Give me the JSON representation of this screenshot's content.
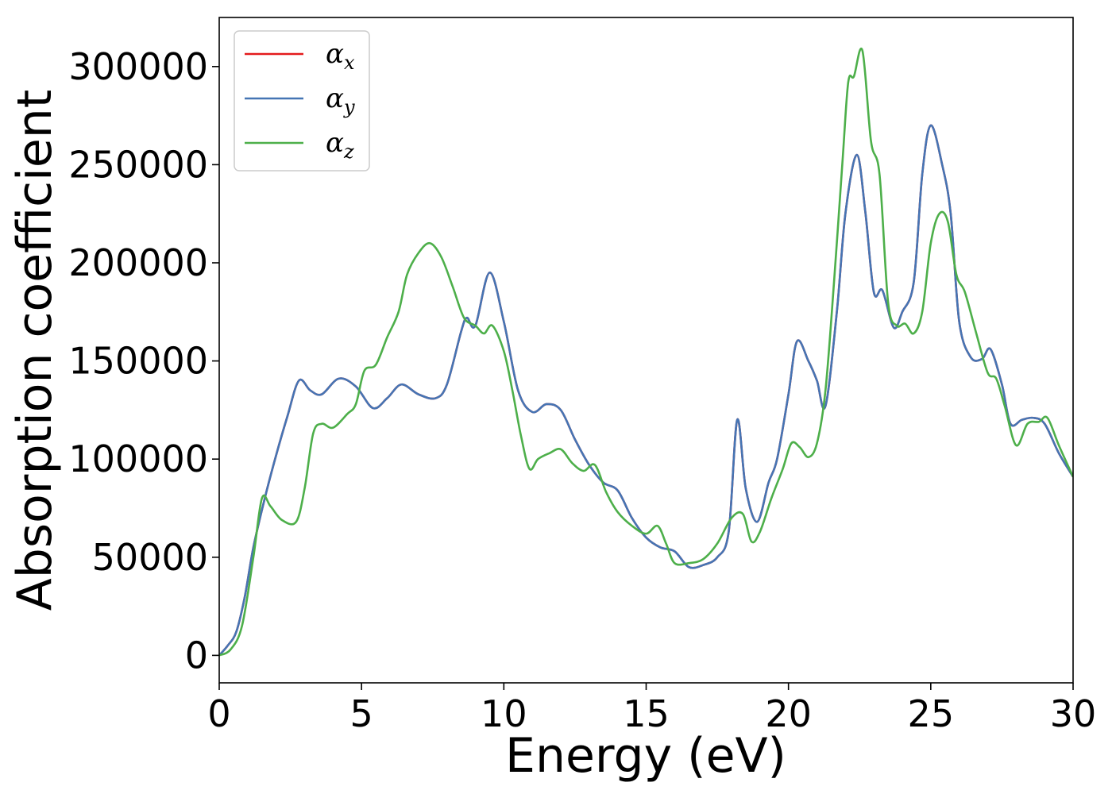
{
  "chart_data": {
    "type": "line",
    "xlabel": "Energy (eV)",
    "ylabel": "Absorption coefficient",
    "xlim": [
      0,
      30
    ],
    "ylim": [
      -14000,
      325000
    ],
    "x_ticks": [
      0,
      5,
      10,
      15,
      20,
      25,
      30
    ],
    "y_ticks": [
      0,
      50000,
      100000,
      150000,
      200000,
      250000,
      300000
    ],
    "x_tick_labels": [
      "0",
      "5",
      "10",
      "15",
      "20",
      "25",
      "30"
    ],
    "y_tick_labels": [
      "0",
      "50000",
      "100000",
      "150000",
      "200000",
      "250000",
      "300000"
    ],
    "grid": false,
    "legend_position": "top-left",
    "series": [
      {
        "name": "α_x",
        "label_main": "α",
        "label_sub": "x",
        "color": "#e41a1c",
        "x": [
          0,
          0.3,
          0.6,
          0.9,
          1.2,
          1.6,
          2.0,
          2.4,
          2.8,
          3.2,
          3.6,
          4.2,
          4.8,
          5.4,
          5.9,
          6.4,
          7.0,
          7.6,
          8.0,
          8.5,
          8.7,
          9.0,
          9.5,
          10.0,
          10.5,
          11.0,
          11.5,
          12.0,
          12.5,
          13.0,
          13.5,
          14.0,
          14.5,
          15.0,
          15.5,
          16.0,
          16.5,
          17.0,
          17.5,
          17.9,
          18.2,
          18.5,
          18.9,
          19.3,
          19.6,
          20.0,
          20.3,
          20.7,
          21.0,
          21.3,
          21.7,
          22.0,
          22.4,
          22.7,
          23.0,
          23.3,
          23.7,
          24.0,
          24.4,
          24.7,
          25.0,
          25.4,
          25.7,
          26.0,
          26.4,
          26.8,
          27.1,
          27.5,
          27.8,
          28.2,
          28.6,
          29.0,
          29.5,
          30.0
        ],
        "values": [
          0,
          5000,
          12000,
          30000,
          55000,
          80000,
          102000,
          122000,
          140000,
          135000,
          133000,
          141000,
          137000,
          126000,
          131000,
          138000,
          133000,
          131000,
          138000,
          165000,
          172000,
          168000,
          195000,
          170000,
          135000,
          124000,
          128000,
          125000,
          110000,
          97000,
          88000,
          84000,
          70000,
          60000,
          55000,
          53000,
          45000,
          46000,
          50000,
          63000,
          120000,
          85000,
          68000,
          88000,
          100000,
          133000,
          160000,
          150000,
          140000,
          127000,
          175000,
          225000,
          255000,
          226000,
          185000,
          186000,
          167000,
          175000,
          190000,
          245000,
          270000,
          250000,
          225000,
          170000,
          152000,
          151000,
          156000,
          138000,
          118000,
          120000,
          121000,
          118000,
          103000,
          91000
        ]
      },
      {
        "name": "α_y",
        "label_main": "α",
        "label_sub": "y",
        "color": "#4575b4",
        "x": [
          0,
          0.3,
          0.6,
          0.9,
          1.2,
          1.6,
          2.0,
          2.4,
          2.8,
          3.2,
          3.6,
          4.2,
          4.8,
          5.4,
          5.9,
          6.4,
          7.0,
          7.6,
          8.0,
          8.5,
          8.7,
          9.0,
          9.5,
          10.0,
          10.5,
          11.0,
          11.5,
          12.0,
          12.5,
          13.0,
          13.5,
          14.0,
          14.5,
          15.0,
          15.5,
          16.0,
          16.5,
          17.0,
          17.5,
          17.9,
          18.2,
          18.5,
          18.9,
          19.3,
          19.6,
          20.0,
          20.3,
          20.7,
          21.0,
          21.3,
          21.7,
          22.0,
          22.4,
          22.7,
          23.0,
          23.3,
          23.7,
          24.0,
          24.4,
          24.7,
          25.0,
          25.4,
          25.7,
          26.0,
          26.4,
          26.8,
          27.1,
          27.5,
          27.8,
          28.2,
          28.6,
          29.0,
          29.5,
          30.0
        ],
        "values": [
          0,
          5000,
          12000,
          30000,
          55000,
          80000,
          102000,
          122000,
          140000,
          135000,
          133000,
          141000,
          137000,
          126000,
          131000,
          138000,
          133000,
          131000,
          138000,
          165000,
          172000,
          168000,
          195000,
          170000,
          135000,
          124000,
          128000,
          125000,
          110000,
          97000,
          88000,
          84000,
          70000,
          60000,
          55000,
          53000,
          45000,
          46000,
          50000,
          63000,
          120000,
          85000,
          68000,
          88000,
          100000,
          133000,
          160000,
          150000,
          140000,
          127000,
          175000,
          225000,
          255000,
          226000,
          185000,
          186000,
          167000,
          175000,
          190000,
          245000,
          270000,
          250000,
          225000,
          170000,
          152000,
          151000,
          156000,
          138000,
          118000,
          120000,
          121000,
          118000,
          103000,
          91000
        ]
      },
      {
        "name": "α_z",
        "label_main": "α",
        "label_sub": "z",
        "color": "#4daf4a",
        "x": [
          0,
          0.4,
          0.8,
          1.2,
          1.5,
          1.8,
          2.2,
          2.7,
          3.0,
          3.3,
          3.6,
          4.0,
          4.5,
          4.8,
          5.1,
          5.5,
          5.9,
          6.3,
          6.6,
          7.0,
          7.4,
          7.8,
          8.2,
          8.6,
          9.0,
          9.3,
          9.6,
          10.0,
          10.3,
          10.6,
          10.9,
          11.2,
          11.6,
          12.0,
          12.4,
          12.8,
          13.2,
          13.6,
          14.0,
          14.5,
          15.0,
          15.4,
          15.7,
          16.0,
          16.5,
          17.0,
          17.5,
          18.0,
          18.4,
          18.7,
          19.0,
          19.4,
          19.8,
          20.1,
          20.4,
          20.7,
          21.0,
          21.3,
          21.6,
          21.9,
          22.1,
          22.3,
          22.6,
          22.9,
          23.2,
          23.5,
          23.8,
          24.1,
          24.4,
          24.7,
          25.0,
          25.3,
          25.6,
          25.9,
          26.2,
          26.6,
          27.0,
          27.3,
          27.6,
          28.0,
          28.4,
          28.8,
          29.1,
          29.5,
          30.0
        ],
        "values": [
          0,
          3000,
          15000,
          50000,
          80000,
          76000,
          69000,
          68000,
          85000,
          113000,
          118000,
          116000,
          123000,
          128000,
          145000,
          148000,
          162000,
          175000,
          194000,
          205000,
          210000,
          203000,
          188000,
          172000,
          168000,
          164000,
          168000,
          155000,
          135000,
          112000,
          95000,
          100000,
          103000,
          105000,
          98000,
          94000,
          97000,
          83000,
          73000,
          66000,
          62000,
          66000,
          57000,
          47000,
          47000,
          49000,
          57000,
          70000,
          72000,
          58000,
          63000,
          80000,
          95000,
          108000,
          106000,
          101000,
          108000,
          135000,
          190000,
          252000,
          292000,
          295000,
          308000,
          262000,
          245000,
          180000,
          168000,
          169000,
          164000,
          175000,
          210000,
          225000,
          221000,
          194000,
          185000,
          164000,
          144000,
          141000,
          127000,
          107000,
          118000,
          119000,
          121000,
          107000,
          91000
        ]
      }
    ]
  }
}
